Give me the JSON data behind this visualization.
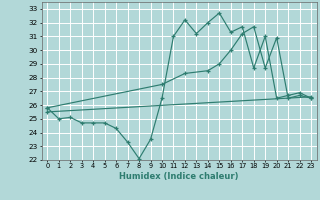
{
  "xlabel": "Humidex (Indice chaleur)",
  "xlim": [
    -0.5,
    23.5
  ],
  "ylim": [
    22,
    33.5
  ],
  "yticks": [
    22,
    23,
    24,
    25,
    26,
    27,
    28,
    29,
    30,
    31,
    32,
    33
  ],
  "xticks": [
    0,
    1,
    2,
    3,
    4,
    5,
    6,
    7,
    8,
    9,
    10,
    11,
    12,
    13,
    14,
    15,
    16,
    17,
    18,
    19,
    20,
    21,
    22,
    23
  ],
  "bg_color": "#b2d8d8",
  "grid_color": "#ffffff",
  "line_color": "#2e7d70",
  "line1_x": [
    0,
    1,
    2,
    3,
    4,
    5,
    6,
    7,
    8,
    9,
    10,
    11,
    12,
    13,
    14,
    15,
    16,
    17,
    18,
    19,
    20,
    21,
    22,
    23
  ],
  "line1_y": [
    25.8,
    25.0,
    25.1,
    24.7,
    24.7,
    24.7,
    24.3,
    23.3,
    22.1,
    23.5,
    26.5,
    31.0,
    32.2,
    31.2,
    32.0,
    32.7,
    31.3,
    31.7,
    28.7,
    31.0,
    26.5,
    26.7,
    26.9,
    26.5
  ],
  "line2_x": [
    0,
    10,
    12,
    14,
    15,
    16,
    17,
    18,
    19,
    20,
    21,
    22,
    23
  ],
  "line2_y": [
    25.8,
    27.5,
    28.3,
    28.5,
    29.0,
    30.0,
    31.2,
    31.7,
    28.7,
    30.9,
    26.5,
    26.7,
    26.5
  ],
  "line3_x": [
    0,
    23
  ],
  "line3_y": [
    25.5,
    26.6
  ]
}
